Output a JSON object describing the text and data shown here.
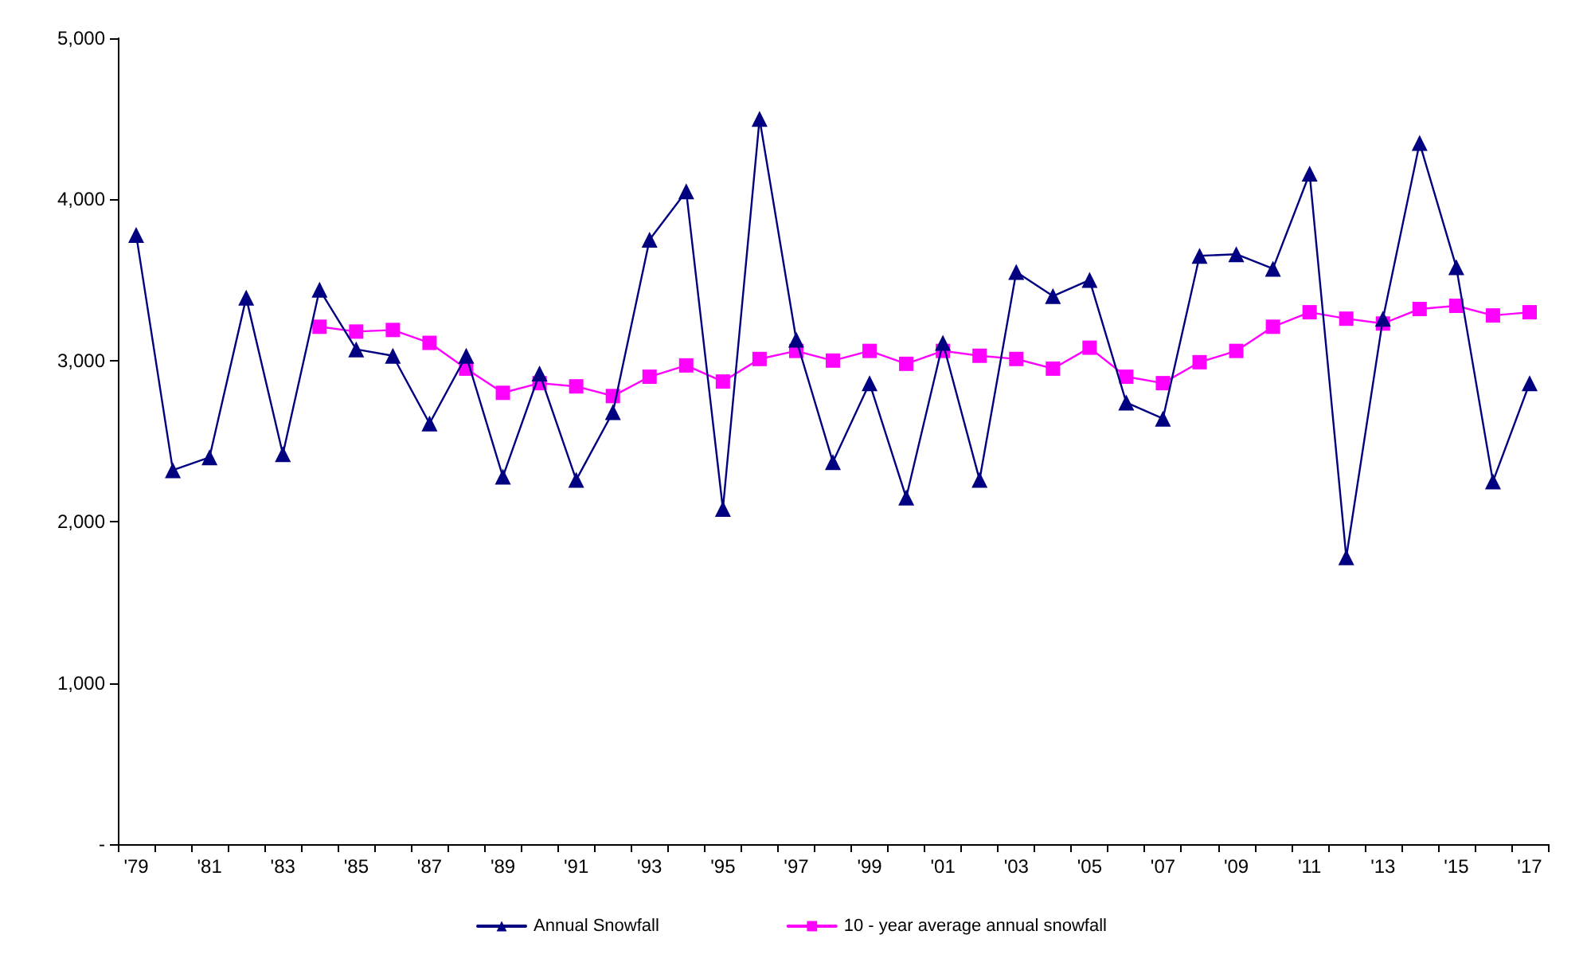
{
  "chart_data": {
    "type": "line",
    "categories": [
      "'79",
      null,
      "'81",
      null,
      "'83",
      null,
      "'85",
      null,
      "'87",
      null,
      "'89",
      null,
      "'91",
      null,
      "'93",
      null,
      "'95",
      null,
      "'97",
      null,
      "'99",
      null,
      "'01",
      null,
      "'03",
      null,
      "'05",
      null,
      "'07",
      null,
      "'09",
      null,
      "'11",
      null,
      "'13",
      null,
      "'15",
      null,
      "'17"
    ],
    "series": [
      {
        "name": "Annual Snowfall",
        "color": "#000080",
        "marker": "triangle",
        "values": [
          3780,
          2320,
          2400,
          3390,
          2420,
          3440,
          3070,
          3030,
          2610,
          3030,
          2280,
          2920,
          2260,
          2680,
          3750,
          4050,
          2080,
          4500,
          3130,
          2370,
          2860,
          2150,
          3110,
          2260,
          3550,
          3400,
          3500,
          2740,
          2640,
          3650,
          3660,
          3570,
          4160,
          1780,
          3260,
          4350,
          3580,
          2250,
          2860
        ]
      },
      {
        "name": "10 - year average annual snowfall",
        "color": "#ff00ff",
        "marker": "square",
        "values": [
          null,
          null,
          null,
          null,
          null,
          3210,
          3180,
          3190,
          3110,
          2950,
          2800,
          2860,
          2840,
          2780,
          2900,
          2970,
          2870,
          3010,
          3060,
          3000,
          3060,
          2980,
          3060,
          3030,
          3010,
          2950,
          3080,
          2900,
          2860,
          2990,
          3060,
          3210,
          3300,
          3260,
          3230,
          3320,
          3340,
          3280,
          3300
        ]
      }
    ],
    "ylim": [
      0,
      5000
    ],
    "yticks": [
      {
        "value": 0,
        "label": "-"
      },
      {
        "value": 1000,
        "label": "1,000"
      },
      {
        "value": 2000,
        "label": "2,000"
      },
      {
        "value": 3000,
        "label": "3,000"
      },
      {
        "value": 4000,
        "label": "4,000"
      },
      {
        "value": 5000,
        "label": "5,000"
      }
    ],
    "grid": false,
    "legend": "bottom",
    "line_style": "solid"
  }
}
